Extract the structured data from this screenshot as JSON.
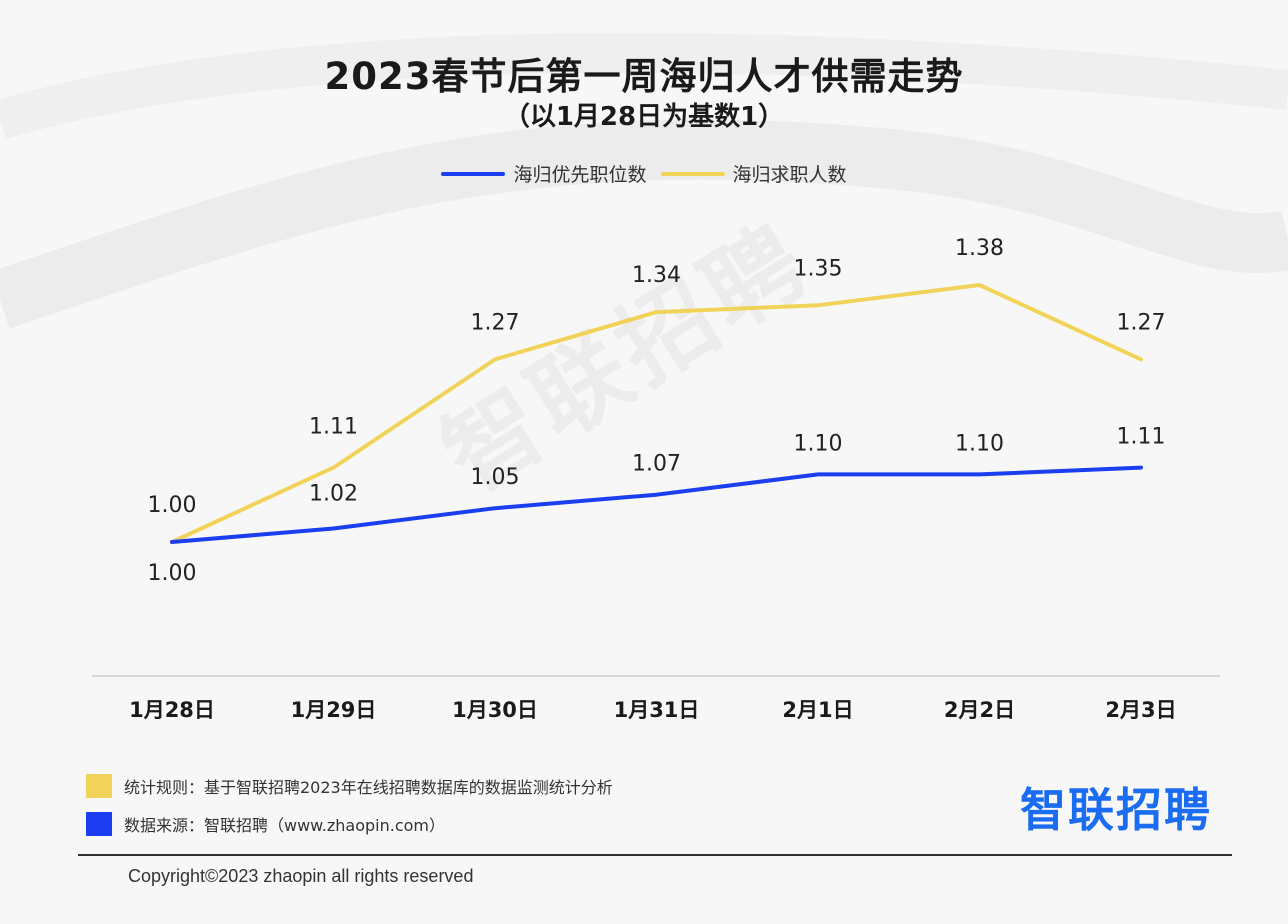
{
  "title": "2023春节后第一周海归人才供需走势",
  "subtitle": "（以1月28日为基数1）",
  "watermark": "智联招聘",
  "legend": [
    {
      "label": "海归优先职位数",
      "color": "#1a3ef0"
    },
    {
      "label": "海归求职人数",
      "color": "#f2d35a"
    }
  ],
  "chart_data": {
    "type": "line",
    "categories": [
      "1月28日",
      "1月29日",
      "1月30日",
      "1月31日",
      "2月1日",
      "2月2日",
      "2月3日"
    ],
    "series": [
      {
        "name": "海归优先职位数",
        "color": "#1a3ef0",
        "values": [
          1.0,
          1.02,
          1.05,
          1.07,
          1.1,
          1.1,
          1.11
        ],
        "labels": [
          "1.00",
          "1.02",
          "1.05",
          "1.07",
          "1.10",
          "1.10",
          "1.11"
        ]
      },
      {
        "name": "海归求职人数",
        "color": "#f2d35a",
        "values": [
          1.0,
          1.11,
          1.27,
          1.34,
          1.35,
          1.38,
          1.27
        ],
        "labels": [
          "1.00",
          "1.11",
          "1.27",
          "1.34",
          "1.35",
          "1.38",
          "1.27"
        ]
      }
    ],
    "ylim": [
      1.0,
      1.38
    ],
    "grid": false,
    "legend_position": "top-center"
  },
  "footer": {
    "rule_label": "统计规则：基于智联招聘2023年在线招聘数据库的数据监测统计分析",
    "rule_color": "#f2d35a",
    "source_label": "数据来源：智联招聘（www.zhaopin.com）",
    "source_color": "#1a3ef0",
    "logo": "智联招聘",
    "copyright": "Copyright©2023 zhaopin all rights reserved"
  }
}
